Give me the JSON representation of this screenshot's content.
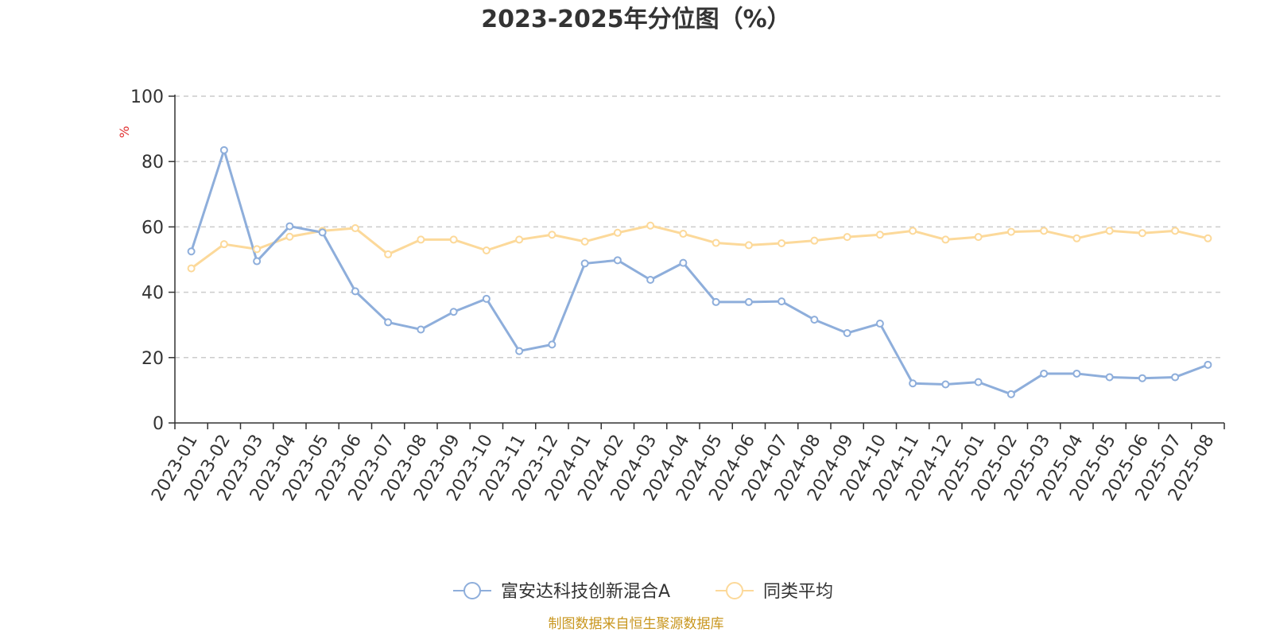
{
  "chart_data": {
    "type": "line",
    "title": "2023-2025年分位图（%）",
    "ylabel": "%",
    "ylim": [
      0,
      100
    ],
    "yticks": [
      0,
      20,
      40,
      60,
      80,
      100
    ],
    "grid": true,
    "legend_position": "bottom",
    "categories": [
      "2023-01",
      "2023-02",
      "2023-03",
      "2023-04",
      "2023-05",
      "2023-06",
      "2023-07",
      "2023-08",
      "2023-09",
      "2023-10",
      "2023-11",
      "2023-12",
      "2024-01",
      "2024-02",
      "2024-03",
      "2024-04",
      "2024-05",
      "2024-06",
      "2024-07",
      "2024-08",
      "2024-09",
      "2024-10",
      "2024-11",
      "2024-12",
      "2025-01",
      "2025-02",
      "2025-03",
      "2025-04",
      "2025-05",
      "2025-06",
      "2025-07",
      "2025-08"
    ],
    "series": [
      {
        "name": "富安达科技创新混合A",
        "color": "#8eaedb",
        "values": [
          52.5,
          83.5,
          49.5,
          60.2,
          58.3,
          40.3,
          30.8,
          28.6,
          34.0,
          38.0,
          22.0,
          24.0,
          48.8,
          49.8,
          43.8,
          49.0,
          37.0,
          37.0,
          37.2,
          31.6,
          27.5,
          30.4,
          12.1,
          11.8,
          12.5,
          8.8,
          15.1,
          15.1,
          14.0,
          13.7,
          14.0,
          17.8
        ]
      },
      {
        "name": "同类平均",
        "color": "#fcd99a",
        "values": [
          47.3,
          54.7,
          53.2,
          57.0,
          58.8,
          59.6,
          51.6,
          56.1,
          56.1,
          52.8,
          56.1,
          57.6,
          55.5,
          58.2,
          60.4,
          57.9,
          55.1,
          54.4,
          55.0,
          55.8,
          56.9,
          57.6,
          58.8,
          56.1,
          56.9,
          58.5,
          58.8,
          56.5,
          58.8,
          58.1,
          58.8,
          56.5
        ]
      }
    ]
  },
  "footer": {
    "source": "制图数据来自恒生聚源数据库"
  }
}
